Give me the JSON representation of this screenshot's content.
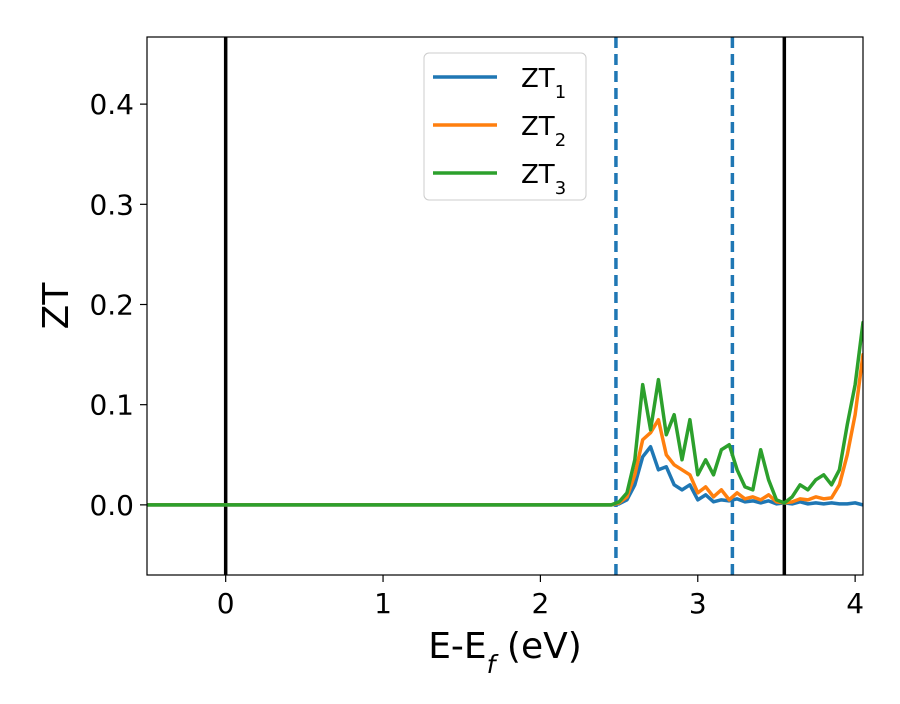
{
  "chart_data": {
    "type": "line",
    "xlabel": "E-E_f (eV)",
    "ylabel": "ZT",
    "xlim": [
      -0.5,
      4.05
    ],
    "ylim": [
      -0.07,
      0.467
    ],
    "x_ticks": [
      0,
      1,
      2,
      3,
      4
    ],
    "y_ticks": [
      0.0,
      0.1,
      0.2,
      0.3,
      0.4
    ],
    "x_tick_labels": [
      "0",
      "1",
      "2",
      "3",
      "4"
    ],
    "y_tick_labels": [
      "0.0",
      "0.1",
      "0.2",
      "0.3",
      "0.4"
    ],
    "grid": false,
    "legend_position": "top-center",
    "vertical_lines": [
      {
        "x": 0.0,
        "style": "solid",
        "color": "#000000"
      },
      {
        "x": 3.55,
        "style": "solid",
        "color": "#000000"
      },
      {
        "x": 2.48,
        "style": "dashed",
        "color": "#1f77b4"
      },
      {
        "x": 3.22,
        "style": "dashed",
        "color": "#1f77b4"
      }
    ],
    "series": [
      {
        "name": "ZT",
        "subscript": "1",
        "color": "#1f77b4",
        "x": [
          -0.5,
          2.45,
          2.5,
          2.55,
          2.6,
          2.65,
          2.7,
          2.75,
          2.8,
          2.85,
          2.9,
          2.95,
          3.0,
          3.05,
          3.1,
          3.15,
          3.2,
          3.25,
          3.3,
          3.35,
          3.4,
          3.45,
          3.5,
          3.55,
          3.6,
          3.65,
          3.7,
          3.75,
          3.8,
          3.85,
          3.9,
          3.95,
          4.0,
          4.05
        ],
        "y": [
          0.0,
          0.0,
          0.001,
          0.005,
          0.02,
          0.048,
          0.058,
          0.035,
          0.038,
          0.02,
          0.015,
          0.02,
          0.005,
          0.01,
          0.003,
          0.005,
          0.004,
          0.006,
          0.003,
          0.004,
          0.002,
          0.004,
          0.001,
          0.002,
          0.001,
          0.003,
          0.001,
          0.002,
          0.001,
          0.002,
          0.001,
          0.001,
          0.002,
          0.0
        ]
      },
      {
        "name": "ZT",
        "subscript": "2",
        "color": "#ff7f0e",
        "x": [
          -0.5,
          2.45,
          2.5,
          2.55,
          2.6,
          2.65,
          2.7,
          2.75,
          2.8,
          2.85,
          2.9,
          2.95,
          3.0,
          3.05,
          3.1,
          3.15,
          3.2,
          3.25,
          3.3,
          3.35,
          3.4,
          3.45,
          3.5,
          3.55,
          3.6,
          3.65,
          3.7,
          3.75,
          3.8,
          3.85,
          3.9,
          3.95,
          4.0,
          4.05
        ],
        "y": [
          0.0,
          0.0,
          0.002,
          0.008,
          0.03,
          0.065,
          0.072,
          0.085,
          0.05,
          0.04,
          0.035,
          0.03,
          0.012,
          0.018,
          0.008,
          0.015,
          0.005,
          0.012,
          0.006,
          0.008,
          0.005,
          0.01,
          0.003,
          0.002,
          0.003,
          0.006,
          0.005,
          0.008,
          0.006,
          0.007,
          0.02,
          0.05,
          0.09,
          0.15
        ]
      },
      {
        "name": "ZT",
        "subscript": "3",
        "color": "#2ca02c",
        "x": [
          -0.5,
          2.45,
          2.5,
          2.55,
          2.6,
          2.65,
          2.7,
          2.75,
          2.8,
          2.85,
          2.9,
          2.95,
          3.0,
          3.05,
          3.1,
          3.15,
          3.2,
          3.25,
          3.3,
          3.35,
          3.4,
          3.45,
          3.5,
          3.55,
          3.6,
          3.65,
          3.7,
          3.75,
          3.8,
          3.85,
          3.9,
          3.95,
          4.0,
          4.05
        ],
        "y": [
          0.0,
          0.0,
          0.003,
          0.012,
          0.045,
          0.12,
          0.075,
          0.125,
          0.07,
          0.09,
          0.045,
          0.085,
          0.03,
          0.045,
          0.03,
          0.055,
          0.06,
          0.035,
          0.018,
          0.015,
          0.055,
          0.025,
          0.005,
          0.002,
          0.008,
          0.02,
          0.015,
          0.025,
          0.03,
          0.02,
          0.035,
          0.08,
          0.12,
          0.182
        ]
      }
    ]
  }
}
